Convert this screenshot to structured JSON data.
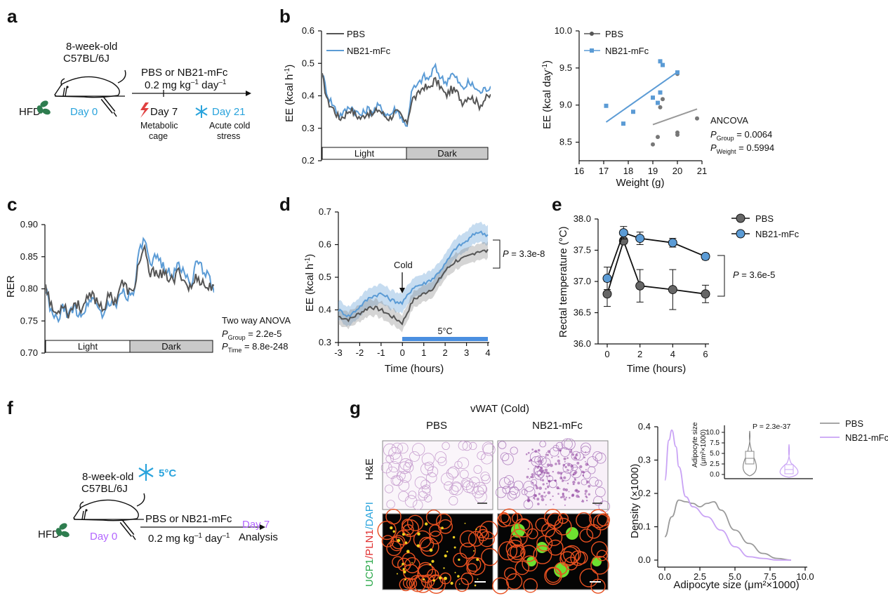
{
  "panel_letters": {
    "a": "a",
    "b": "b",
    "c": "c",
    "d": "d",
    "e": "e",
    "f": "f",
    "g": "g"
  },
  "colors": {
    "pbs": "#555555",
    "nb21": "#5b9bd5",
    "cold": "#29a3dc",
    "purple": "#b366ff",
    "green": "#2e7d4f",
    "lavender": "#c9a3f5",
    "grey_kde": "#9a9a9a"
  },
  "panel_a": {
    "hfd": "HFD",
    "age": "8-week-old",
    "strain": "C57BL/6J",
    "day0": "Day 0",
    "treatment": "PBS or NB21-mFc",
    "dose_main": "0.2 mg kg",
    "dose_sup1": "–1",
    "dose_mid": " day",
    "dose_sup2": "–1",
    "day7": "Day 7",
    "metabolic": "Metabolic",
    "cage": "cage",
    "day21": "Day 21",
    "acute": "Acute cold",
    "stress": "stress"
  },
  "panel_b": {
    "legend": {
      "pbs": "PBS",
      "nb21": "NB21-mFc"
    },
    "ylabel_main": "EE (kcal h",
    "ylabel_sup": "-1",
    "ylabel_end": ")",
    "ylabel2": "EE (kcal day",
    "light": "Light",
    "dark": "Dark",
    "xlabel2": "Weight (g)",
    "ancova": "ANCOVA",
    "p": "P",
    "pgroup_sub": "Group",
    "pgroup_val": " = 0.0064",
    "pweight_sub": "Weight",
    "pweight_val": " = 0.5994"
  },
  "panel_c": {
    "ylabel": "RER",
    "light": "Light",
    "dark": "Dark",
    "anova": "Two way ANOVA",
    "p": "P",
    "pgroup_sub": "Group",
    "pgroup_val": " = 2.2e-5",
    "ptime_sub": "Time",
    "ptime_val": " = 8.8e-248"
  },
  "panel_d": {
    "ylabel": "EE (kcal h",
    "cold": "Cold",
    "bar_label": "5°C",
    "xlabel": "Time (hours)",
    "p": "P",
    "pval": " = 3.3e-8"
  },
  "panel_e": {
    "ylabel": "Rectal temperature (°C)",
    "xlabel": "Time (hours)",
    "legend": {
      "pbs": "PBS",
      "nb21": "NB21-mFc"
    },
    "p": "P",
    "pval": " = 3.6e-5"
  },
  "panel_f": {
    "hfd": "HFD",
    "age": "8-week-old",
    "strain": "C57BL/6J",
    "cold": "5°C",
    "day0": "Day 0",
    "treatment": "PBS or NB21-mFc",
    "dose_main": "0.2 mg kg",
    "dose_sup1": "–1",
    "dose_mid": " day",
    "dose_sup2": "–1",
    "day7": "Day 7",
    "analysis": "Analysis"
  },
  "panel_g": {
    "title": "vWAT (Cold)",
    "col1": "PBS",
    "col2": "NB21-mFc",
    "he": "H&E",
    "stain_ucp1": "UCP1",
    "stain_pln1": "/PLN1",
    "stain_dapi": "/DAPI",
    "legend": {
      "pbs": "PBS",
      "nb21": "NB21-mFc"
    },
    "ylabel": "Density (×1000)",
    "xlabel": "Adipocyte size (μm²×1000)",
    "inset_p": "P = 2.3e-37",
    "inset_ylabel1": "Adipocyte size",
    "inset_ylabel2": "(μm²×1000)"
  },
  "chart_data": [
    {
      "panel": "b-left",
      "type": "line",
      "ylabel": "EE (kcal h-1)",
      "ylim": [
        0.2,
        0.6
      ],
      "yticks": [
        0.2,
        0.3,
        0.4,
        0.5,
        0.6
      ],
      "series": [
        {
          "name": "PBS",
          "values": [
            0.46,
            0.38,
            0.36,
            0.33,
            0.34,
            0.36,
            0.34,
            0.33,
            0.35,
            0.34,
            0.36,
            0.34,
            0.33,
            0.35,
            0.34,
            0.31,
            0.39,
            0.4,
            0.43,
            0.42,
            0.45,
            0.43,
            0.4,
            0.42,
            0.41,
            0.38,
            0.4,
            0.39,
            0.37,
            0.39,
            0.4
          ]
        },
        {
          "name": "NB21-mFc",
          "values": [
            0.47,
            0.4,
            0.37,
            0.34,
            0.35,
            0.37,
            0.35,
            0.34,
            0.36,
            0.35,
            0.37,
            0.35,
            0.34,
            0.36,
            0.34,
            0.3,
            0.42,
            0.43,
            0.46,
            0.45,
            0.49,
            0.46,
            0.44,
            0.47,
            0.45,
            0.42,
            0.44,
            0.43,
            0.41,
            0.42,
            0.43
          ]
        }
      ]
    },
    {
      "panel": "b-right",
      "type": "scatter",
      "xlabel": "Weight (g)",
      "ylabel": "EE (kcal day-1)",
      "xlim": [
        16,
        21
      ],
      "ylim": [
        8.25,
        10
      ],
      "xticks": [
        16,
        17,
        18,
        19,
        20,
        21
      ],
      "yticks": [
        8.5,
        9.0,
        9.5,
        10.0
      ],
      "series": [
        {
          "name": "PBS",
          "points": [
            [
              19.0,
              8.47
            ],
            [
              19.2,
              8.57
            ],
            [
              19.3,
              8.97
            ],
            [
              19.4,
              9.08
            ],
            [
              20.0,
              8.6
            ],
            [
              20.0,
              8.63
            ],
            [
              20.0,
              9.42
            ],
            [
              20.8,
              8.82
            ]
          ]
        },
        {
          "name": "NB21-mFc",
          "points": [
            [
              17.1,
              8.99
            ],
            [
              17.8,
              8.75
            ],
            [
              18.2,
              8.91
            ],
            [
              19.0,
              9.1
            ],
            [
              19.2,
              9.03
            ],
            [
              19.3,
              9.59
            ],
            [
              19.4,
              9.54
            ],
            [
              19.3,
              9.17
            ],
            [
              20.0,
              9.44
            ]
          ]
        }
      ]
    },
    {
      "panel": "c",
      "type": "line",
      "ylabel": "RER",
      "ylim": [
        0.7,
        0.9
      ],
      "yticks": [
        0.7,
        0.75,
        0.8,
        0.85,
        0.9
      ],
      "series": [
        {
          "name": "PBS",
          "values": [
            0.81,
            0.77,
            0.76,
            0.78,
            0.76,
            0.78,
            0.77,
            0.78,
            0.79,
            0.78,
            0.77,
            0.79,
            0.78,
            0.81,
            0.8,
            0.79,
            0.84,
            0.86,
            0.82,
            0.83,
            0.82,
            0.82,
            0.81,
            0.83,
            0.81,
            0.8,
            0.82,
            0.81,
            0.8,
            0.81
          ]
        },
        {
          "name": "NB21-mFc",
          "values": [
            0.8,
            0.76,
            0.75,
            0.77,
            0.76,
            0.77,
            0.76,
            0.77,
            0.79,
            0.77,
            0.76,
            0.78,
            0.77,
            0.8,
            0.79,
            0.79,
            0.85,
            0.88,
            0.83,
            0.85,
            0.84,
            0.83,
            0.82,
            0.84,
            0.82,
            0.81,
            0.84,
            0.83,
            0.82,
            0.8
          ]
        }
      ]
    },
    {
      "panel": "d",
      "type": "line",
      "xlabel": "Time (hours)",
      "ylabel": "EE (kcal h-1)",
      "xlim": [
        -3,
        4
      ],
      "ylim": [
        0.3,
        0.7
      ],
      "xticks": [
        -3,
        -2,
        -1,
        0,
        1,
        2,
        3,
        4
      ],
      "yticks": [
        0.3,
        0.4,
        0.5,
        0.6,
        0.7
      ],
      "series": [
        {
          "name": "PBS",
          "x": [
            -3,
            -2.5,
            -2,
            -1.5,
            -1,
            -0.5,
            0,
            0.5,
            1,
            1.5,
            2,
            2.5,
            3,
            3.5,
            4
          ],
          "values": [
            0.38,
            0.37,
            0.39,
            0.41,
            0.4,
            0.38,
            0.36,
            0.43,
            0.45,
            0.47,
            0.52,
            0.55,
            0.56,
            0.58,
            0.58
          ]
        },
        {
          "name": "NB21-mFc",
          "x": [
            -3,
            -2.5,
            -2,
            -1.5,
            -1,
            -0.5,
            0,
            0.5,
            1,
            1.5,
            2,
            2.5,
            3,
            3.5,
            4
          ],
          "values": [
            0.4,
            0.38,
            0.41,
            0.44,
            0.45,
            0.43,
            0.42,
            0.47,
            0.48,
            0.5,
            0.54,
            0.59,
            0.61,
            0.64,
            0.63
          ]
        }
      ]
    },
    {
      "panel": "e",
      "type": "line",
      "xlabel": "Time (hours)",
      "ylabel": "Rectal temperature (°C)",
      "xlim": [
        0,
        6
      ],
      "ylim": [
        36.0,
        38.0
      ],
      "xticks": [
        0,
        2,
        4,
        6
      ],
      "yticks": [
        36.0,
        36.5,
        37.0,
        37.5,
        38.0
      ],
      "series": [
        {
          "name": "PBS",
          "x": [
            0,
            1,
            2,
            4,
            6
          ],
          "values": [
            36.8,
            37.65,
            36.93,
            36.87,
            36.8
          ],
          "error": [
            0.2,
            0.05,
            0.26,
            0.32,
            0.14
          ]
        },
        {
          "name": "NB21-mFc",
          "x": [
            0,
            1,
            2,
            4,
            6
          ],
          "values": [
            37.05,
            37.78,
            37.69,
            37.62,
            37.4
          ],
          "error": [
            0.18,
            0.1,
            0.1,
            0.07,
            0.05
          ]
        }
      ]
    },
    {
      "panel": "g",
      "type": "line",
      "xlabel": "Adipocyte size (μm²×1000)",
      "ylabel": "Density (×1000)",
      "xlim": [
        0,
        10
      ],
      "ylim": [
        0,
        0.4
      ],
      "xticks": [
        0,
        2.5,
        5,
        7.5,
        10
      ],
      "yticks": [
        0,
        0.1,
        0.2,
        0.3,
        0.4
      ],
      "series": [
        {
          "name": "PBS",
          "x": [
            0,
            0.5,
            1,
            1.5,
            2,
            2.5,
            3,
            3.5,
            4,
            5,
            6,
            7,
            8,
            9
          ],
          "values": [
            0.07,
            0.13,
            0.18,
            0.175,
            0.17,
            0.16,
            0.17,
            0.175,
            0.15,
            0.09,
            0.05,
            0.02,
            0.005,
            0.0
          ]
        },
        {
          "name": "NB21-mFc",
          "x": [
            0,
            0.3,
            0.5,
            0.8,
            1,
            1.5,
            2,
            3,
            4,
            5,
            6,
            7,
            8,
            9
          ],
          "values": [
            0.24,
            0.36,
            0.39,
            0.34,
            0.28,
            0.19,
            0.16,
            0.13,
            0.09,
            0.04,
            0.01,
            0.005,
            0.0,
            0.0
          ]
        }
      ]
    }
  ]
}
